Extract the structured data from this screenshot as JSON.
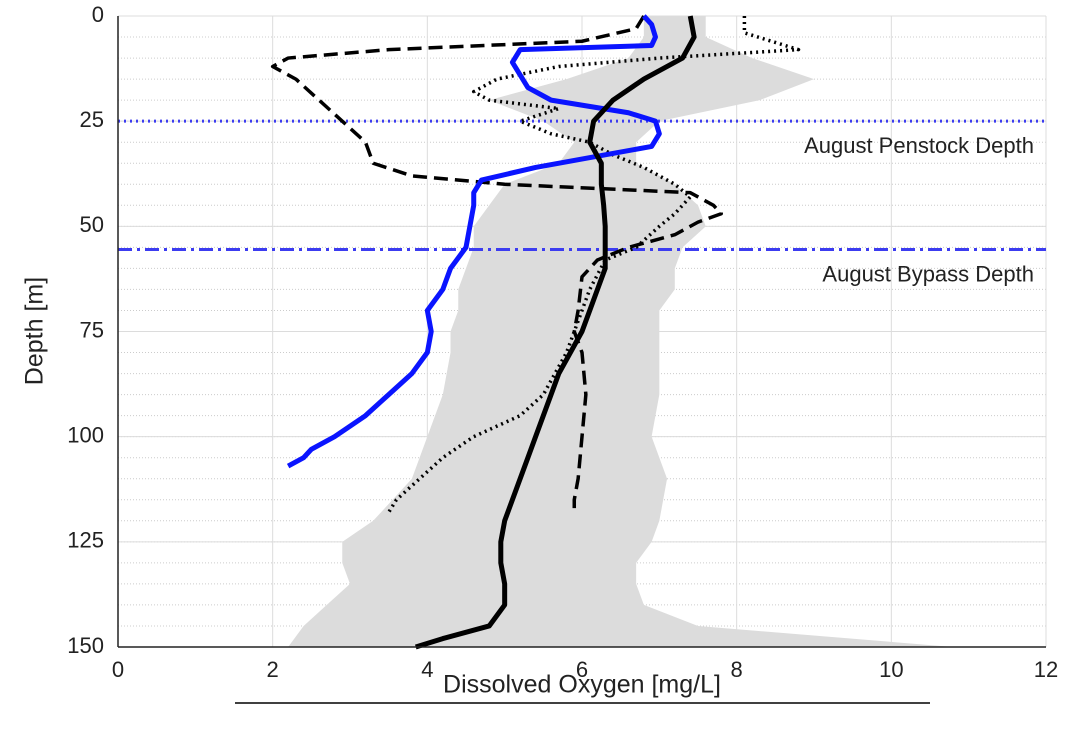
{
  "chart_data": {
    "type": "line",
    "xlabel": "Dissolved Oxygen [mg/L]",
    "ylabel": "Depth [m]",
    "xlim": [
      0,
      12
    ],
    "xticks": [
      0,
      2,
      4,
      6,
      8,
      10,
      12
    ],
    "ylim": [
      0,
      150
    ],
    "yticks": [
      0,
      25,
      50,
      75,
      100,
      125,
      150
    ],
    "y_inverted": true,
    "grid": true,
    "y_minor_step": 5,
    "band": {
      "color": "#dcdcdc",
      "y": [
        0,
        5,
        10,
        15,
        20,
        25,
        30,
        35,
        40,
        45,
        50,
        55,
        60,
        65,
        70,
        75,
        80,
        90,
        100,
        110,
        120,
        125,
        130,
        135,
        140,
        145,
        150
      ],
      "x_low": [
        6.8,
        6.8,
        6.6,
        5.8,
        4.8,
        5.5,
        5.9,
        5.7,
        5.0,
        4.8,
        4.6,
        4.6,
        4.5,
        4.4,
        4.4,
        4.3,
        4.3,
        4.2,
        4.0,
        3.8,
        3.3,
        2.9,
        2.9,
        3.0,
        2.7,
        2.4,
        2.2
      ],
      "x_high": [
        7.6,
        7.6,
        8.2,
        9.0,
        8.3,
        7.0,
        6.7,
        6.7,
        7.2,
        7.5,
        7.6,
        7.3,
        7.2,
        7.2,
        7.0,
        7.0,
        7.0,
        7.0,
        6.9,
        7.1,
        7.0,
        6.9,
        6.7,
        6.7,
        6.8,
        7.5,
        10.8
      ]
    },
    "series": [
      {
        "color": "#000000",
        "style": "dotted",
        "y": [
          0,
          4,
          8,
          10,
          12,
          15,
          18,
          20,
          22,
          25,
          28,
          30,
          33,
          36,
          40,
          43,
          47,
          50,
          55,
          58,
          65,
          70,
          75,
          80,
          90,
          95,
          100,
          105,
          110,
          115,
          118
        ],
        "x": [
          8.1,
          8.1,
          8.8,
          7.0,
          5.7,
          4.9,
          4.6,
          4.8,
          5.7,
          5.2,
          5.6,
          6.1,
          6.4,
          6.8,
          7.2,
          7.4,
          7.2,
          7.0,
          6.7,
          6.3,
          6.1,
          6.0,
          5.9,
          5.8,
          5.5,
          5.2,
          4.6,
          4.2,
          3.9,
          3.6,
          3.5
        ]
      },
      {
        "color": "#000000",
        "style": "dashed",
        "y": [
          0,
          3,
          6,
          8,
          10,
          12,
          15,
          20,
          25,
          30,
          35,
          38,
          40,
          42,
          45,
          47,
          49,
          52,
          55,
          58,
          62,
          70,
          75,
          80,
          90,
          100,
          110,
          115,
          117
        ],
        "x": [
          6.8,
          6.7,
          6.0,
          3.5,
          2.2,
          2.0,
          2.3,
          2.6,
          2.9,
          3.2,
          3.3,
          3.8,
          5.0,
          7.4,
          7.7,
          7.8,
          7.5,
          7.2,
          6.6,
          6.2,
          6.0,
          5.95,
          5.9,
          6.0,
          6.05,
          6.0,
          5.95,
          5.9,
          5.9
        ]
      },
      {
        "color": "#0a14ff",
        "style": "solid",
        "y": [
          0,
          2,
          5,
          7,
          8,
          11,
          14,
          17,
          20,
          23,
          25,
          28,
          31,
          33,
          36,
          39,
          42,
          45,
          50,
          55,
          60,
          65,
          70,
          75,
          80,
          85,
          90,
          95,
          100,
          103,
          105,
          107
        ],
        "x": [
          6.8,
          6.9,
          6.95,
          6.9,
          5.2,
          5.1,
          5.2,
          5.3,
          5.6,
          6.6,
          6.95,
          7.0,
          6.9,
          6.3,
          5.4,
          4.7,
          4.6,
          4.6,
          4.55,
          4.5,
          4.3,
          4.2,
          4.0,
          4.05,
          4.0,
          3.8,
          3.5,
          3.2,
          2.8,
          2.5,
          2.4,
          2.2
        ]
      },
      {
        "color": "#000000",
        "style": "solid",
        "y": [
          0,
          5,
          10,
          15,
          20,
          25,
          30,
          35,
          40,
          45,
          50,
          55,
          60,
          65,
          70,
          75,
          80,
          85,
          90,
          95,
          100,
          105,
          110,
          115,
          120,
          125,
          130,
          135,
          140,
          145,
          148,
          150
        ],
        "x": [
          7.4,
          7.45,
          7.3,
          6.8,
          6.4,
          6.15,
          6.1,
          6.25,
          6.25,
          6.28,
          6.3,
          6.3,
          6.3,
          6.2,
          6.1,
          6.0,
          5.85,
          5.7,
          5.6,
          5.5,
          5.4,
          5.3,
          5.2,
          5.1,
          5.0,
          4.95,
          4.95,
          5.0,
          5.0,
          4.8,
          4.2,
          3.85
        ]
      }
    ],
    "reference_lines": [
      {
        "value": 25,
        "label": "August Penstock Depth",
        "style": "dotted",
        "color": "#3c3cf0"
      },
      {
        "value": 55.5,
        "label": "August Bypass Depth",
        "style": "dashdot",
        "color": "#3c3cf0"
      }
    ]
  }
}
